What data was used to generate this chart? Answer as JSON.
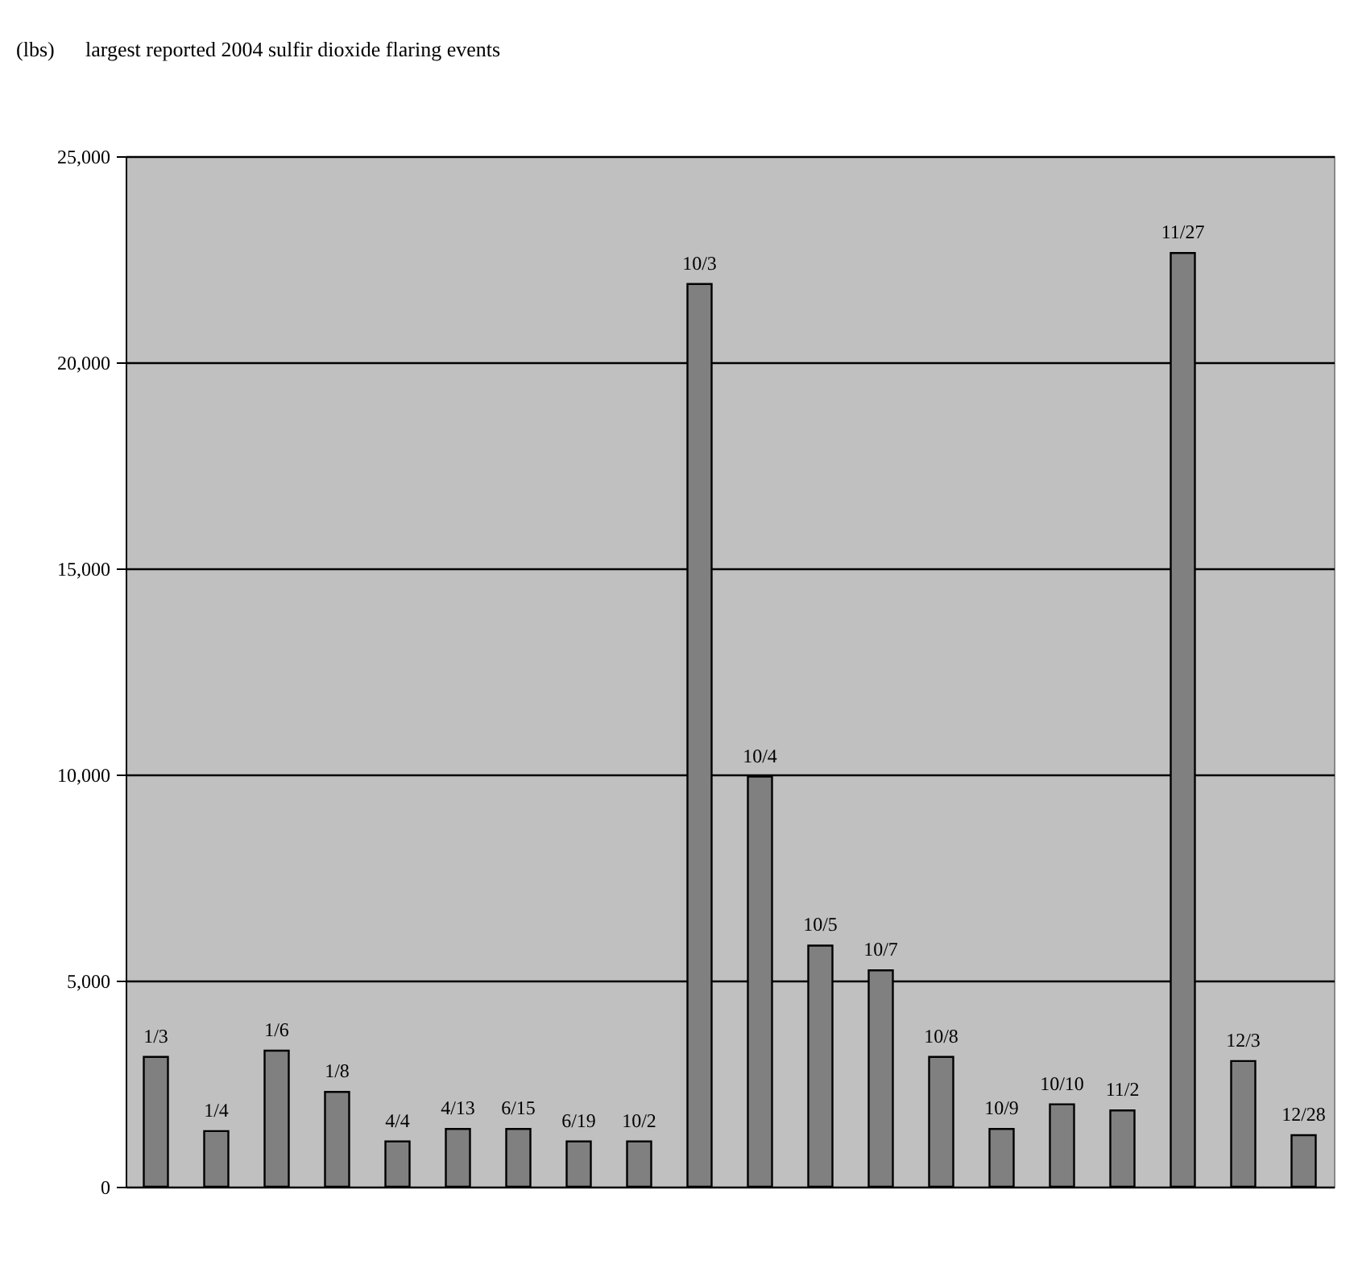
{
  "chart_data": {
    "type": "bar",
    "title": "largest reported 2004 sulfir dioxide flaring events",
    "annotations": [
      "(lbs)"
    ],
    "categories": [
      "1/3",
      "1/4",
      "1/6",
      "1/8",
      "4/4",
      "4/13",
      "6/15",
      "6/19",
      "10/2",
      "10/3",
      "10/4",
      "10/5",
      "10/7",
      "10/8",
      "10/9",
      "10/10",
      "11/2",
      "11/27",
      "12/3",
      "12/28"
    ],
    "values": [
      3150,
      1350,
      3300,
      2300,
      1100,
      1400,
      1400,
      1100,
      1100,
      21900,
      9950,
      5850,
      5250,
      3150,
      1400,
      2000,
      1850,
      22650,
      3050,
      1250
    ],
    "color": "#808080",
    "ylim": [
      0,
      25000
    ],
    "yticks": [
      0,
      {
        "value": 5000,
        "label": "5,000"
      },
      {
        "value": 10000,
        "label": "10,000"
      },
      {
        "value": 15000,
        "label": "15,000"
      },
      {
        "value": 20000,
        "label": "20,000"
      },
      {
        "value": 25000,
        "label": "25,000"
      }
    ],
    "grid": "y",
    "tick_labels": "y"
  }
}
